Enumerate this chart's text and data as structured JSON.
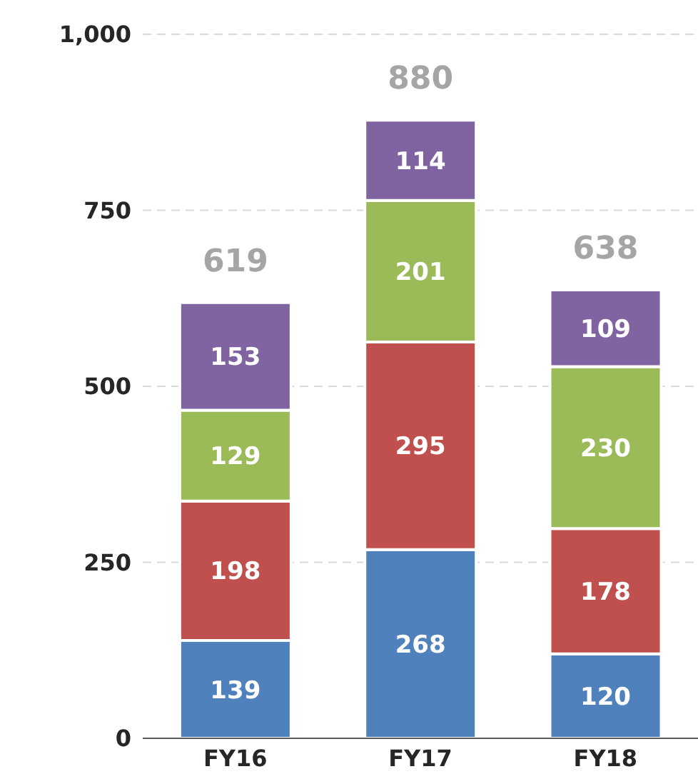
{
  "chart_data": {
    "type": "bar",
    "stacked": true,
    "categories": [
      "FY16",
      "FY17",
      "FY18"
    ],
    "series": [
      {
        "color": "#4f81bd",
        "values": [
          139,
          268,
          120
        ]
      },
      {
        "color": "#c0504d",
        "values": [
          198,
          295,
          178
        ]
      },
      {
        "color": "#9bbb59",
        "values": [
          129,
          201,
          230
        ]
      },
      {
        "color": "#8064a2",
        "values": [
          153,
          114,
          109
        ]
      }
    ],
    "ylim": [
      0,
      1000
    ],
    "yticks": [
      0,
      250,
      500,
      750,
      {
        "value": 1000,
        "label": "1,000"
      }
    ],
    "grid": "y",
    "data_labels": true,
    "totals": [
      "619",
      "880",
      "638"
    ]
  }
}
